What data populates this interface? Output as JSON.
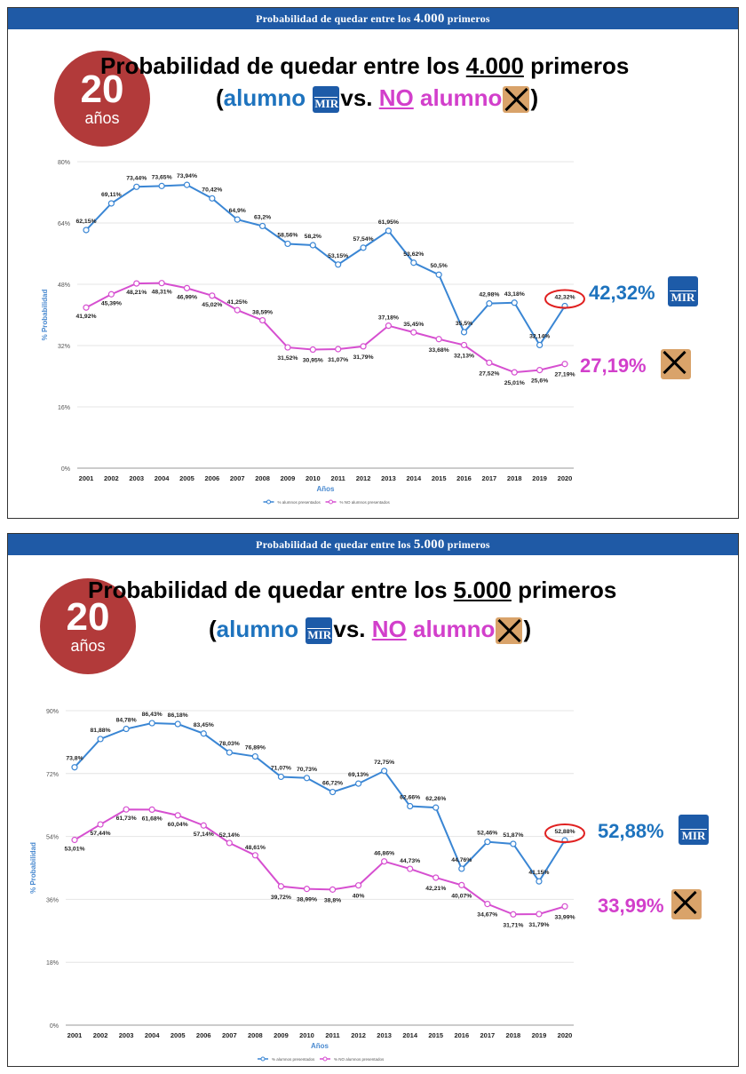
{
  "charts": [
    {
      "header_prefix": "Probabilidad de quedar entre los",
      "header_number": "4.000",
      "header_suffix": "primeros",
      "badge_number": "20",
      "badge_unit": "años",
      "title_line1_prefix": "Probabilidad de quedar entre los",
      "title_line1_number": "4.000",
      "title_line1_suffix": "primeros",
      "title_open": "(",
      "title_alumno": "alumno",
      "title_vs": "vs.",
      "title_no": "NO",
      "title_alumno2": "alumno",
      "title_close": ")",
      "side_alumno": "42,32%",
      "side_no_alumno": "27,19%"
    },
    {
      "header_prefix": "Probabilidad de quedar entre los",
      "header_number": "5.000",
      "header_suffix": "primeros",
      "badge_number": "20",
      "badge_unit": "años",
      "title_line1_prefix": "Probabilidad de quedar entre los",
      "title_line1_number": "5.000",
      "title_line1_suffix": "primeros",
      "title_open": "(",
      "title_alumno": "alumno",
      "title_vs": "vs.",
      "title_no": "NO",
      "title_alumno2": "alumno",
      "title_close": ")",
      "side_alumno": "52,88%",
      "side_no_alumno": "33,99%"
    }
  ],
  "colors": {
    "alumno": "#3a86d4",
    "no_alumno": "#d64fd0",
    "badge": "#b23a3a",
    "header": "#1f5aa6",
    "highlight": "#e02020"
  },
  "chart_data": [
    {
      "type": "line",
      "x": [
        "2001",
        "2002",
        "2003",
        "2004",
        "2005",
        "2006",
        "2007",
        "2008",
        "2009",
        "2010",
        "2011",
        "2012",
        "2013",
        "2014",
        "2015",
        "2016",
        "2017",
        "2018",
        "2019",
        "2020"
      ],
      "xlabel": "Años",
      "ylabel": "% Probabilidad",
      "ylim": [
        0,
        80
      ],
      "yticks": [
        0,
        16,
        32,
        48,
        64,
        80
      ],
      "ytick_labels": [
        "0%",
        "16%",
        "32%",
        "48%",
        "64%",
        "80%"
      ],
      "series": [
        {
          "name": "% alumnos presentados",
          "values": [
            62.15,
            69.11,
            73.44,
            73.65,
            73.94,
            70.42,
            64.9,
            63.2,
            58.56,
            58.2,
            53.15,
            57.54,
            61.95,
            53.62,
            50.5,
            35.5,
            42.98,
            43.18,
            32.14,
            42.32
          ],
          "labels": [
            "62,15%",
            "69,11%",
            "73,44%",
            "73,65%",
            "73,94%",
            "70,42%",
            "64,9%",
            "63,2%",
            "58,56%",
            "58,2%",
            "53,15%",
            "57,54%",
            "61,95%",
            "53,62%",
            "50,5%",
            "35,5%",
            "42,98%",
            "43,18%",
            "32,14%",
            "42,32%"
          ]
        },
        {
          "name": "% NO alumnos presentados",
          "values": [
            41.92,
            45.39,
            48.21,
            48.31,
            46.99,
            45.02,
            41.25,
            38.59,
            31.52,
            30.95,
            31.07,
            31.79,
            37.18,
            35.45,
            33.68,
            32.13,
            27.52,
            25.01,
            25.6,
            27.19
          ],
          "labels": [
            "41,92%",
            "45,39%",
            "48,21%",
            "48,31%",
            "46,99%",
            "45,02%",
            "41,25%",
            "38,59%",
            "31,52%",
            "30,95%",
            "31,07%",
            "31,79%",
            "37,18%",
            "35,45%",
            "33,68%",
            "32,13%",
            "27,52%",
            "25,01%",
            "25,6%",
            "27,19%"
          ]
        }
      ]
    },
    {
      "type": "line",
      "x": [
        "2001",
        "2002",
        "2003",
        "2004",
        "2005",
        "2006",
        "2007",
        "2008",
        "2009",
        "2010",
        "2011",
        "2012",
        "2013",
        "2014",
        "2015",
        "2016",
        "2017",
        "2018",
        "2019",
        "2020"
      ],
      "xlabel": "Años",
      "ylabel": "% Probabilidad",
      "ylim": [
        0,
        90
      ],
      "yticks": [
        0,
        18,
        36,
        54,
        72,
        90
      ],
      "ytick_labels": [
        "0%",
        "18%",
        "36%",
        "54%",
        "72%",
        "90%"
      ],
      "series": [
        {
          "name": "% alumnos presentados",
          "values": [
            73.8,
            81.88,
            84.78,
            86.43,
            86.18,
            83.45,
            78.03,
            76.89,
            71.07,
            70.73,
            66.72,
            69.13,
            72.75,
            62.66,
            62.26,
            44.76,
            52.46,
            51.87,
            41.15,
            52.88
          ],
          "labels": [
            "73,8%",
            "81,88%",
            "84,78%",
            "86,43%",
            "86,18%",
            "83,45%",
            "78,03%",
            "76,89%",
            "71,07%",
            "70,73%",
            "66,72%",
            "69,13%",
            "72,75%",
            "62,66%",
            "62,26%",
            "44,76%",
            "52,46%",
            "51,87%",
            "41,15%",
            "52,88%"
          ]
        },
        {
          "name": "% NO alumnos presentados",
          "values": [
            53.01,
            57.44,
            61.73,
            61.68,
            60.04,
            57.14,
            52.14,
            48.61,
            39.72,
            38.99,
            38.8,
            40,
            46.86,
            44.73,
            42.21,
            40.07,
            34.67,
            31.71,
            31.79,
            33.99
          ],
          "labels": [
            "53,01%",
            "57,44%",
            "61,73%",
            "61,68%",
            "60,04%",
            "57,14%",
            "52,14%",
            "48,61%",
            "39,72%",
            "38,99%",
            "38,8%",
            "40%",
            "46,86%",
            "44,73%",
            "42,21%",
            "40,07%",
            "34,67%",
            "31,71%",
            "31,79%",
            "33,99%"
          ]
        }
      ]
    }
  ]
}
